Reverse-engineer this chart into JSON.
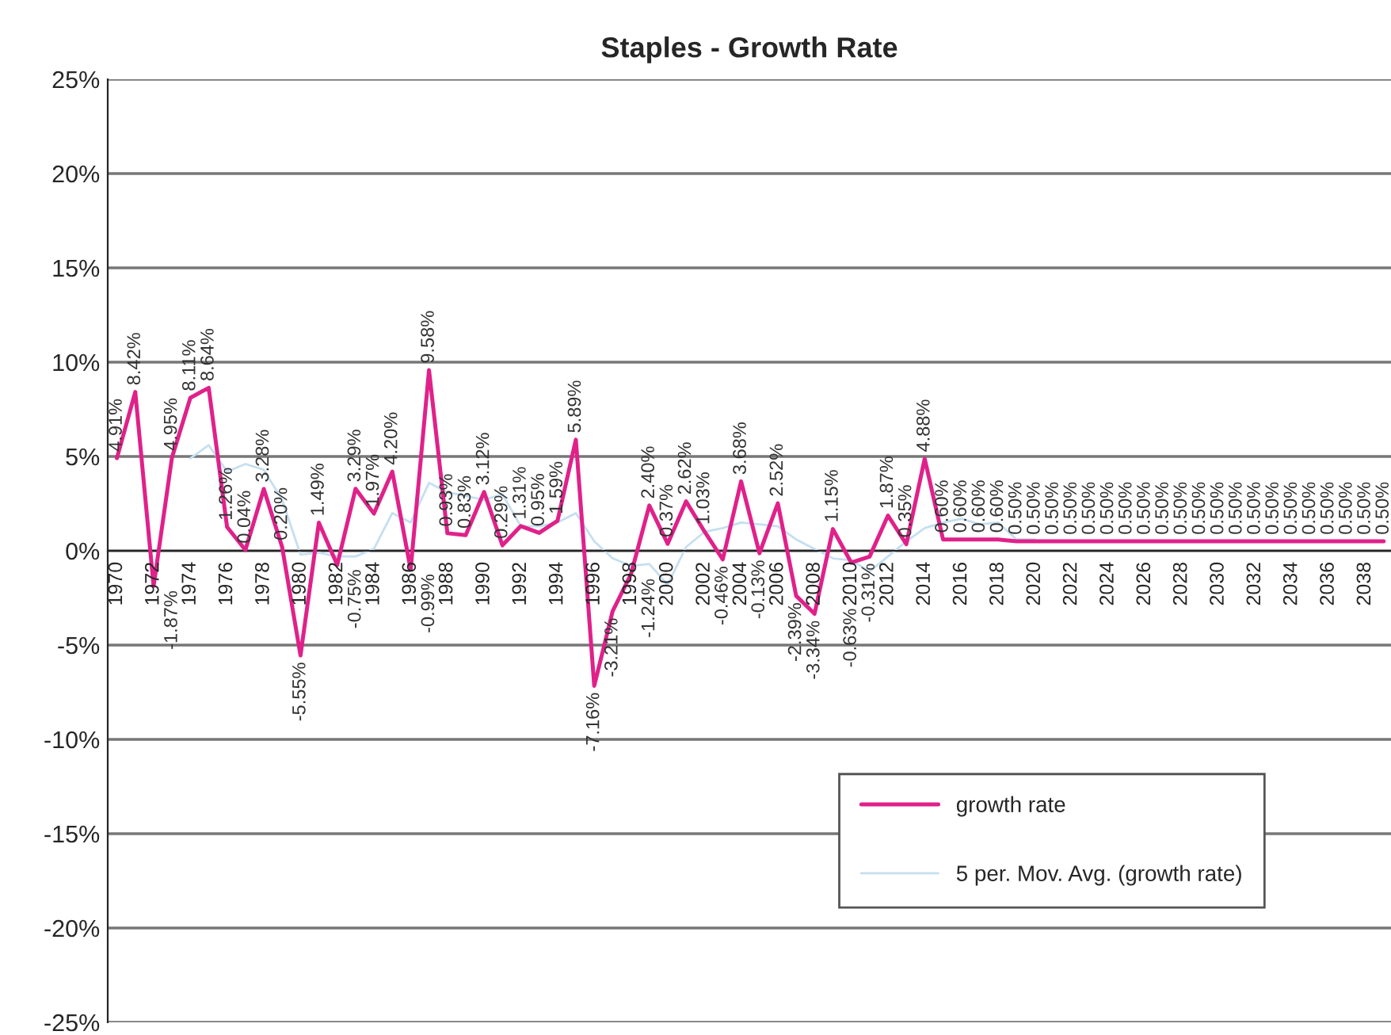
{
  "chart_data": {
    "type": "line",
    "title": "Staples - Growth Rate",
    "categories": [
      "1970",
      null,
      "1972",
      null,
      "1974",
      null,
      "1976",
      null,
      "1978",
      null,
      "1980",
      null,
      "1982",
      null,
      "1984",
      null,
      "1986",
      null,
      "1988",
      null,
      "1990",
      null,
      "1992",
      null,
      "1994",
      null,
      "1996",
      null,
      "1998",
      null,
      "2000",
      null,
      "2002",
      null,
      "2004",
      null,
      "2006",
      null,
      "2008",
      null,
      "2010",
      null,
      "2012",
      null,
      "2014",
      null,
      "2016",
      null,
      "2018",
      null,
      "2020",
      null,
      "2022",
      null,
      "2024",
      null,
      "2026",
      null,
      "2028",
      null,
      "2030",
      null,
      "2032",
      null,
      "2034",
      null,
      "2036",
      null,
      "2038",
      null
    ],
    "series": [
      {
        "name": "growth rate",
        "color": "#e0218a",
        "values": [
          4.91,
          8.42,
          -1.87,
          4.95,
          8.11,
          8.64,
          1.26,
          0.04,
          3.28,
          0.2,
          -5.55,
          1.49,
          -0.75,
          3.29,
          1.97,
          4.2,
          -0.99,
          9.58,
          0.93,
          0.83,
          3.12,
          0.29,
          1.31,
          0.95,
          1.59,
          5.89,
          -7.16,
          -3.21,
          -1.24,
          2.4,
          0.37,
          2.62,
          1.03,
          -0.46,
          3.68,
          -0.13,
          2.52,
          -2.39,
          -3.34,
          1.15,
          -0.63,
          -0.31,
          1.87,
          0.35,
          4.88,
          0.6,
          0.6,
          0.6,
          0.6,
          0.5,
          0.5,
          0.5,
          0.5,
          0.5,
          0.5,
          0.5,
          0.5,
          0.5,
          0.5,
          0.5,
          0.5,
          0.5,
          0.5,
          0.5,
          0.5,
          0.5,
          0.5,
          0.5,
          0.5,
          0.5
        ],
        "value_labels": [
          "4.91%",
          "8.42%",
          "-1.87%",
          "4.95%",
          "8.11%",
          "8.64%",
          "1.26%",
          "0.04%",
          "3.28%",
          "0.20%",
          "-5.55%",
          "1.49%",
          "-0.75%",
          "3.29%",
          "1.97%",
          "4.20%",
          "-0.99%",
          "9.58%",
          "0.93%",
          "0.83%",
          "3.12%",
          "0.29%",
          "1.31%",
          "0.95%",
          "1.59%",
          "5.89%",
          "-7.16%",
          "-3.21%",
          "-1.24%",
          "2.40%",
          "0.37%",
          "2.62%",
          "1.03%",
          "-0.46%",
          "3.68%",
          "-0.13%",
          "2.52%",
          "-2.39%",
          "-3.34%",
          "1.15%",
          "-0.63%",
          "-0.31%",
          "1.87%",
          "0.35%",
          "4.88%",
          "0.60%",
          "0.60%",
          "0.60%",
          "0.60%",
          "0.50%",
          "0.50%",
          "0.50%",
          "0.50%",
          "0.50%",
          "0.50%",
          "0.50%",
          "0.50%",
          "0.50%",
          "0.50%",
          "0.50%",
          "0.50%",
          "0.50%",
          "0.50%",
          "0.50%",
          "0.50%",
          "0.50%",
          "0.50%",
          "0.50%",
          "0.50%",
          "0.50%"
        ]
      },
      {
        "name": "5 per. Mov. Avg. (growth rate)",
        "color": "#c5dff0",
        "values": [
          null,
          null,
          null,
          null,
          4.9,
          5.6,
          4.2,
          4.6,
          4.3,
          2.7,
          -0.2,
          -0.1,
          -0.3,
          -0.3,
          0.1,
          2.0,
          1.5,
          3.6,
          3.1,
          2.9,
          2.7,
          3.0,
          1.3,
          1.3,
          1.5,
          2.0,
          0.5,
          -0.4,
          -0.8,
          -0.7,
          -1.8,
          0.2,
          1.0,
          1.2,
          1.5,
          1.4,
          1.3,
          0.6,
          0.1,
          -0.4,
          -0.5,
          -1.1,
          -0.3,
          0.5,
          1.2,
          1.5,
          1.7,
          1.4,
          1.5,
          0.6,
          0.6,
          null,
          null,
          null,
          null,
          null,
          null,
          null,
          null,
          null,
          null,
          null,
          null,
          null,
          null,
          null,
          null,
          null,
          null,
          null
        ]
      }
    ],
    "ylim": [
      -25,
      25
    ],
    "yticks": [
      {
        "value": -25,
        "label": "-25%"
      },
      {
        "value": -20,
        "label": "-20%"
      },
      {
        "value": -15,
        "label": "-15%"
      },
      {
        "value": -10,
        "label": "-10%"
      },
      {
        "value": -5,
        "label": "-5%"
      },
      {
        "value": 0,
        "label": "0%"
      },
      {
        "value": 5,
        "label": "5%"
      },
      {
        "value": 10,
        "label": "10%"
      },
      {
        "value": 15,
        "label": "15%"
      },
      {
        "value": 20,
        "label": "20%"
      },
      {
        "value": 25,
        "label": "25%"
      }
    ],
    "grid": "y",
    "legend": "bottom right",
    "marker": "none",
    "line_style": "solid"
  }
}
